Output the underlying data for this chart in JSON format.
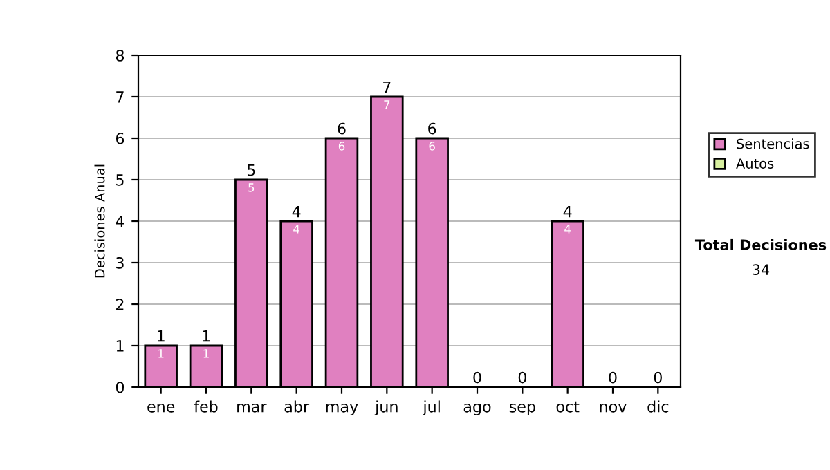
{
  "chart_data": {
    "type": "bar",
    "stacked": true,
    "ylabel": "Decisiones Anual",
    "categories": [
      "ene",
      "feb",
      "mar",
      "abr",
      "may",
      "jun",
      "jul",
      "ago",
      "sep",
      "oct",
      "nov",
      "dic"
    ],
    "series": [
      {
        "name": "Sentencias",
        "color": "#e080c0",
        "values": [
          1,
          1,
          5,
          4,
          6,
          7,
          6,
          0,
          0,
          4,
          0,
          0
        ],
        "value_labels": [
          "1",
          "1",
          "5",
          "4",
          "6",
          "7",
          "6",
          null,
          null,
          "4",
          null,
          null
        ]
      },
      {
        "name": "Autos",
        "color": "#d8f0a0",
        "values": [
          0,
          0,
          0,
          0,
          0,
          0,
          0,
          0,
          0,
          0,
          0,
          0
        ]
      }
    ],
    "totals": [
      "1",
      "1",
      "5",
      "4",
      "6",
      "7",
      "6",
      "0",
      "0",
      "4",
      "0",
      "0"
    ],
    "ylim": [
      0,
      8
    ],
    "yticks": [
      0,
      1,
      2,
      3,
      4,
      5,
      6,
      7,
      8
    ],
    "grid": "y",
    "legend": "right",
    "annotations": [
      "Total Decisiones",
      "34"
    ]
  }
}
